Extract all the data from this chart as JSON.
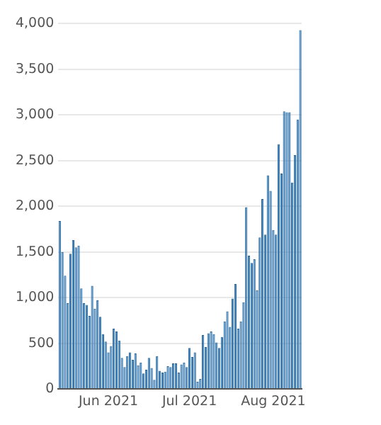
{
  "chart_data": {
    "type": "bar",
    "x": [
      "2021-05-14",
      "2021-05-15",
      "2021-05-16",
      "2021-05-17",
      "2021-05-18",
      "2021-05-19",
      "2021-05-20",
      "2021-05-21",
      "2021-05-22",
      "2021-05-23",
      "2021-05-24",
      "2021-05-25",
      "2021-05-26",
      "2021-05-27",
      "2021-05-28",
      "2021-05-29",
      "2021-05-30",
      "2021-05-31",
      "2021-06-01",
      "2021-06-02",
      "2021-06-03",
      "2021-06-04",
      "2021-06-05",
      "2021-06-06",
      "2021-06-07",
      "2021-06-08",
      "2021-06-09",
      "2021-06-10",
      "2021-06-11",
      "2021-06-12",
      "2021-06-13",
      "2021-06-14",
      "2021-06-15",
      "2021-06-16",
      "2021-06-17",
      "2021-06-18",
      "2021-06-19",
      "2021-06-20",
      "2021-06-21",
      "2021-06-22",
      "2021-06-23",
      "2021-06-24",
      "2021-06-25",
      "2021-06-26",
      "2021-06-27",
      "2021-06-28",
      "2021-06-29",
      "2021-06-30",
      "2021-07-01",
      "2021-07-02",
      "2021-07-03",
      "2021-07-04",
      "2021-07-05",
      "2021-07-06",
      "2021-07-07",
      "2021-07-08",
      "2021-07-09",
      "2021-07-10",
      "2021-07-11",
      "2021-07-12",
      "2021-07-13",
      "2021-07-14",
      "2021-07-15",
      "2021-07-16",
      "2021-07-17",
      "2021-07-18",
      "2021-07-19",
      "2021-07-20",
      "2021-07-21",
      "2021-07-22",
      "2021-07-23",
      "2021-07-24",
      "2021-07-25",
      "2021-07-26",
      "2021-07-27",
      "2021-07-28",
      "2021-07-29",
      "2021-07-30",
      "2021-07-31",
      "2021-08-01",
      "2021-08-02",
      "2021-08-03",
      "2021-08-04",
      "2021-08-05",
      "2021-08-06",
      "2021-08-07",
      "2021-08-08",
      "2021-08-09",
      "2021-08-10",
      "2021-08-11"
    ],
    "values": [
      1840,
      1500,
      1240,
      940,
      1480,
      1630,
      1550,
      1570,
      1100,
      940,
      920,
      800,
      1130,
      880,
      970,
      790,
      600,
      520,
      400,
      470,
      660,
      630,
      530,
      340,
      240,
      360,
      400,
      320,
      390,
      260,
      290,
      170,
      210,
      340,
      230,
      100,
      360,
      200,
      180,
      190,
      250,
      240,
      280,
      280,
      180,
      270,
      290,
      240,
      450,
      350,
      400,
      80,
      110,
      590,
      460,
      610,
      630,
      600,
      510,
      450,
      570,
      740,
      850,
      680,
      990,
      1150,
      660,
      740,
      950,
      1990,
      1460,
      1380,
      1420,
      1080,
      1660,
      2080,
      1690,
      2340,
      2170,
      1740,
      1690,
      2680,
      2360,
      3040,
      3030,
      3030,
      2260,
      2560,
      2950,
      3930
    ],
    "color": "#3f88c5",
    "xlim": [
      "2021-05-13T12:00",
      "2021-08-11T12:00"
    ],
    "xticks": [
      {
        "value": "2021-06-01",
        "label": "Jun 2021"
      },
      {
        "value": "2021-07-01",
        "label": "Jul 2021"
      },
      {
        "value": "2021-08-01",
        "label": "Aug 2021"
      }
    ],
    "ylim": [
      0,
      4000
    ],
    "yticks": [
      0,
      {
        "value": 500,
        "label": "500"
      },
      {
        "value": 1000,
        "label": "1,000"
      },
      {
        "value": 1500,
        "label": "1,500"
      },
      {
        "value": 2000,
        "label": "2,000"
      },
      {
        "value": 2500,
        "label": "2,500"
      },
      {
        "value": 3000,
        "label": "3,000"
      },
      {
        "value": 3500,
        "label": "3,500"
      },
      {
        "value": 4000,
        "label": "4,000"
      }
    ],
    "grid": "y",
    "legend": false
  }
}
